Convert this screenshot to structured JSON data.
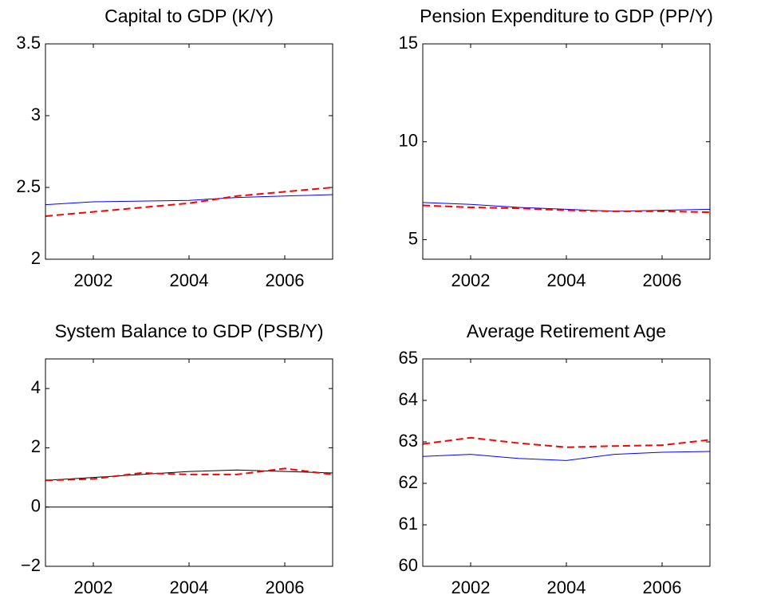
{
  "chart_data": [
    {
      "type": "line",
      "title": "Capital to GDP (K/Y)",
      "x": [
        2001,
        2002,
        2003,
        2004,
        2005,
        2006,
        2007
      ],
      "xlim": [
        2001,
        2007
      ],
      "xticks": [
        2002,
        2004,
        2006
      ],
      "ylim": [
        2,
        3.5
      ],
      "yticks": [
        2,
        2.5,
        3,
        3.5
      ],
      "series": [
        {
          "color": "#0000ff",
          "dash": false,
          "values": [
            2.38,
            2.4,
            2.405,
            2.41,
            2.43,
            2.44,
            2.45
          ]
        },
        {
          "color": "#ff0000",
          "dash": true,
          "values": [
            2.3,
            2.33,
            2.36,
            2.39,
            2.44,
            2.47,
            2.5
          ]
        }
      ]
    },
    {
      "type": "line",
      "title": "Pension Expenditure to GDP (PP/Y)",
      "x": [
        2001,
        2002,
        2003,
        2004,
        2005,
        2006,
        2007
      ],
      "xlim": [
        2001,
        2007
      ],
      "xticks": [
        2002,
        2004,
        2006
      ],
      "ylim": [
        4,
        15
      ],
      "yticks": [
        5,
        10,
        15
      ],
      "series": [
        {
          "color": "#0000ff",
          "dash": false,
          "values": [
            6.9,
            6.8,
            6.65,
            6.55,
            6.45,
            6.5,
            6.55
          ]
        },
        {
          "color": "#ff0000",
          "dash": true,
          "values": [
            6.75,
            6.65,
            6.6,
            6.5,
            6.45,
            6.45,
            6.4
          ]
        }
      ]
    },
    {
      "type": "line",
      "title": "System Balance to GDP (PSB/Y)",
      "x": [
        2001,
        2002,
        2003,
        2004,
        2005,
        2006,
        2007
      ],
      "xlim": [
        2001,
        2007
      ],
      "xticks": [
        2002,
        2004,
        2006
      ],
      "ylim": [
        -2,
        5
      ],
      "yticks": [
        {
          "value": -2,
          "label": "−2"
        },
        0,
        2,
        4
      ],
      "hline": 0,
      "series": [
        {
          "color": "#000000",
          "dash": false,
          "values": [
            0.9,
            1.0,
            1.1,
            1.2,
            1.25,
            1.2,
            1.15
          ]
        },
        {
          "color": "#ff0000",
          "dash": true,
          "values": [
            0.9,
            0.95,
            1.15,
            1.1,
            1.1,
            1.3,
            1.1
          ]
        }
      ]
    },
    {
      "type": "line",
      "title": "Average Retirement Age",
      "x": [
        2001,
        2002,
        2003,
        2004,
        2005,
        2006,
        2007
      ],
      "xlim": [
        2001,
        2007
      ],
      "xticks": [
        2002,
        2004,
        2006
      ],
      "ylim": [
        60,
        65
      ],
      "yticks": [
        60,
        61,
        62,
        63,
        64,
        65
      ],
      "series": [
        {
          "color": "#0000ff",
          "dash": false,
          "values": [
            62.65,
            62.7,
            62.6,
            62.55,
            62.7,
            62.75,
            62.77
          ]
        },
        {
          "color": "#ff0000",
          "dash": true,
          "values": [
            62.95,
            63.1,
            62.97,
            62.87,
            62.9,
            62.92,
            63.05
          ]
        }
      ]
    }
  ]
}
